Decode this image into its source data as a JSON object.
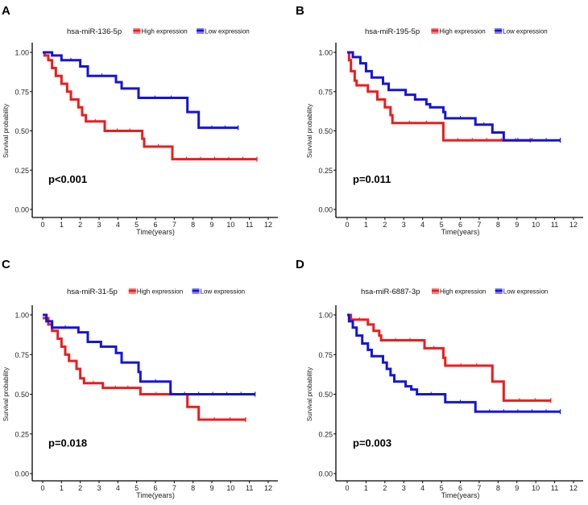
{
  "colors": {
    "high": "#ee1c1c",
    "low": "#1414dc",
    "high_swatch": "#f08080",
    "low_swatch": "#8080f0"
  },
  "chart_data": [
    {
      "type": "line",
      "subtype": "kaplan-meier step",
      "panel_label": "A",
      "legend_title": "hsa-miR-136-5p",
      "legend_placement": "top",
      "xlabel": "Time(years)",
      "ylabel": "Survival probability",
      "xlim": [
        0,
        12
      ],
      "ylim": [
        0,
        1
      ],
      "xticks": [
        "0",
        "1",
        "2",
        "3",
        "4",
        "5",
        "6",
        "7",
        "8",
        "9",
        "10",
        "11",
        "12"
      ],
      "yticks": [
        "0.00",
        "0.25",
        "0.50",
        "0.75",
        "1.00"
      ],
      "grid": false,
      "annotation": "p<0.001",
      "series": [
        {
          "name": "High expression",
          "color": "#ee1c1c",
          "steps": [
            [
              0,
              1
            ],
            [
              0.1,
              0.98
            ],
            [
              0.3,
              0.95
            ],
            [
              0.5,
              0.9
            ],
            [
              0.7,
              0.85
            ],
            [
              1,
              0.8
            ],
            [
              1.3,
              0.75
            ],
            [
              1.5,
              0.7
            ],
            [
              1.9,
              0.65
            ],
            [
              2.1,
              0.6
            ],
            [
              2.3,
              0.56
            ],
            [
              3.3,
              0.5
            ],
            [
              5.3,
              0.45
            ],
            [
              5.4,
              0.4
            ],
            [
              6.9,
              0.32
            ]
          ],
          "end": 11.4
        },
        {
          "name": "Low expression",
          "color": "#1414dc",
          "steps": [
            [
              0,
              1
            ],
            [
              0.5,
              0.98
            ],
            [
              1,
              0.95
            ],
            [
              2,
              0.91
            ],
            [
              2.4,
              0.85
            ],
            [
              3.9,
              0.81
            ],
            [
              4.2,
              0.77
            ],
            [
              5.1,
              0.71
            ],
            [
              7.7,
              0.62
            ],
            [
              8.3,
              0.52
            ]
          ],
          "end": 10.4
        }
      ]
    },
    {
      "type": "line",
      "subtype": "kaplan-meier step",
      "panel_label": "B",
      "legend_title": "hsa-miR-195-5p",
      "legend_placement": "top",
      "xlabel": "Time(years)",
      "ylabel": "Survival probability",
      "xlim": [
        0,
        12
      ],
      "ylim": [
        0,
        1
      ],
      "xticks": [
        "0",
        "1",
        "2",
        "3",
        "4",
        "5",
        "6",
        "7",
        "8",
        "9",
        "10",
        "11",
        "12"
      ],
      "yticks": [
        "0.00",
        "0.25",
        "0.50",
        "0.75",
        "1.00"
      ],
      "grid": false,
      "annotation": "p=0.011",
      "series": [
        {
          "name": "High expression",
          "color": "#ee1c1c",
          "steps": [
            [
              0,
              1
            ],
            [
              0.1,
              0.95
            ],
            [
              0.2,
              0.88
            ],
            [
              0.4,
              0.82
            ],
            [
              0.5,
              0.79
            ],
            [
              1.1,
              0.75
            ],
            [
              1.6,
              0.7
            ],
            [
              2.0,
              0.65
            ],
            [
              2.3,
              0.6
            ],
            [
              2.4,
              0.55
            ],
            [
              5.1,
              0.44
            ]
          ],
          "end": 9.7
        },
        {
          "name": "Low expression",
          "color": "#1414dc",
          "steps": [
            [
              0,
              1
            ],
            [
              0.3,
              0.97
            ],
            [
              0.7,
              0.93
            ],
            [
              1,
              0.88
            ],
            [
              1.3,
              0.84
            ],
            [
              1.9,
              0.8
            ],
            [
              2.2,
              0.76
            ],
            [
              3.1,
              0.73
            ],
            [
              3.6,
              0.7
            ],
            [
              4.2,
              0.67
            ],
            [
              4.4,
              0.65
            ],
            [
              5.1,
              0.62
            ],
            [
              5.2,
              0.58
            ],
            [
              6.8,
              0.54
            ],
            [
              7.7,
              0.49
            ],
            [
              8.3,
              0.44
            ]
          ],
          "end": 11.3
        }
      ]
    },
    {
      "type": "line",
      "subtype": "kaplan-meier step",
      "panel_label": "C",
      "legend_title": "hsa-miR-31-5p",
      "legend_placement": "top",
      "xlabel": "Time(years)",
      "ylabel": "Survival probability",
      "xlim": [
        0,
        12
      ],
      "ylim": [
        0,
        1
      ],
      "xticks": [
        "0",
        "1",
        "2",
        "3",
        "4",
        "5",
        "6",
        "7",
        "8",
        "9",
        "10",
        "11",
        "12"
      ],
      "yticks": [
        "0.00",
        "0.25",
        "0.50",
        "0.75",
        "1.00"
      ],
      "grid": false,
      "annotation": "p=0.018",
      "series": [
        {
          "name": "High expression",
          "color": "#ee1c1c",
          "steps": [
            [
              0,
              0.98
            ],
            [
              0.3,
              0.94
            ],
            [
              0.5,
              0.9
            ],
            [
              0.8,
              0.85
            ],
            [
              1,
              0.8
            ],
            [
              1.2,
              0.75
            ],
            [
              1.4,
              0.71
            ],
            [
              1.8,
              0.66
            ],
            [
              2,
              0.6
            ],
            [
              2.2,
              0.57
            ],
            [
              3.2,
              0.54
            ],
            [
              5.2,
              0.5
            ],
            [
              7.7,
              0.42
            ],
            [
              8.3,
              0.34
            ]
          ],
          "end": 10.8
        },
        {
          "name": "Low expression",
          "color": "#1414dc",
          "steps": [
            [
              0,
              1
            ],
            [
              0.2,
              0.96
            ],
            [
              0.5,
              0.92
            ],
            [
              1.9,
              0.89
            ],
            [
              2.4,
              0.83
            ],
            [
              3.1,
              0.8
            ],
            [
              3.9,
              0.76
            ],
            [
              4.2,
              0.7
            ],
            [
              5.1,
              0.64
            ],
            [
              5.2,
              0.58
            ],
            [
              6.8,
              0.5
            ]
          ],
          "end": 11.3
        }
      ]
    },
    {
      "type": "line",
      "subtype": "kaplan-meier step",
      "panel_label": "D",
      "legend_title": "hsa-miR-6887-3p",
      "legend_placement": "top",
      "xlabel": "Time(years)",
      "ylabel": "Survival probability",
      "xlim": [
        0,
        12
      ],
      "ylim": [
        0,
        1
      ],
      "xticks": [
        "0",
        "1",
        "2",
        "3",
        "4",
        "5",
        "6",
        "7",
        "8",
        "9",
        "10",
        "11",
        "12"
      ],
      "yticks": [
        "0.00",
        "0.25",
        "0.50",
        "0.75",
        "1.00"
      ],
      "grid": false,
      "annotation": "p=0.003",
      "series": [
        {
          "name": "High expression",
          "color": "#ee1c1c",
          "steps": [
            [
              0,
              1
            ],
            [
              0.2,
              0.97
            ],
            [
              1.1,
              0.94
            ],
            [
              1.4,
              0.9
            ],
            [
              1.7,
              0.87
            ],
            [
              1.8,
              0.84
            ],
            [
              4.1,
              0.79
            ],
            [
              5.1,
              0.73
            ],
            [
              5.2,
              0.68
            ],
            [
              7.7,
              0.58
            ],
            [
              8.3,
              0.46
            ]
          ],
          "end": 10.8
        },
        {
          "name": "Low expression",
          "color": "#1414dc",
          "steps": [
            [
              0,
              1
            ],
            [
              0.1,
              0.96
            ],
            [
              0.3,
              0.92
            ],
            [
              0.5,
              0.87
            ],
            [
              0.8,
              0.82
            ],
            [
              1.1,
              0.78
            ],
            [
              1.3,
              0.74
            ],
            [
              1.9,
              0.7
            ],
            [
              2.1,
              0.66
            ],
            [
              2.3,
              0.62
            ],
            [
              2.5,
              0.58
            ],
            [
              3.1,
              0.55
            ],
            [
              3.4,
              0.53
            ],
            [
              3.7,
              0.5
            ],
            [
              5.2,
              0.45
            ],
            [
              6.8,
              0.39
            ]
          ],
          "end": 11.3
        }
      ]
    }
  ]
}
